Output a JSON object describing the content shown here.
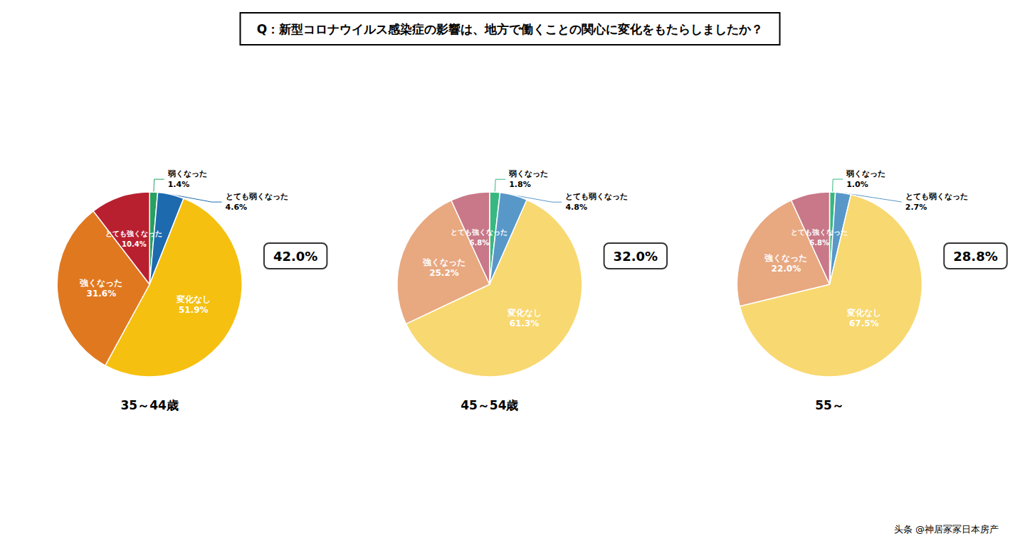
{
  "title": "Q：新型コロナウイルス感染症の影響は、地方で働くことの関心に変化をもたらしましたか？",
  "annotations": [
    "头条 @神居冢冢日本房产"
  ],
  "chart_data": [
    {
      "type": "pie",
      "title": "35～44歳",
      "categories": [
        "弱くなった",
        "とても弱くなった",
        "変化なし",
        "強くなった",
        "とても強くなった"
      ],
      "values": [
        1.4,
        4.6,
        51.9,
        31.6,
        10.4
      ],
      "value_labels": [
        "1.4%",
        "4.6%",
        "51.9%",
        "31.6%",
        "10.4%"
      ],
      "colors": [
        "#28A060",
        "#1E6AAF",
        "#F5C010",
        "#E07820",
        "#B82030"
      ],
      "data_labels": true,
      "annotations": [
        "42.0%"
      ]
    },
    {
      "type": "pie",
      "title": "45～54歳",
      "categories": [
        "弱くなった",
        "とても弱くなった",
        "変化なし",
        "強くなった",
        "とても強くなった"
      ],
      "values": [
        1.8,
        4.8,
        61.3,
        25.2,
        6.8
      ],
      "value_labels": [
        "1.8%",
        "4.8%",
        "61.3%",
        "25.2%",
        "6.8%"
      ],
      "colors": [
        "#38B880",
        "#5898C8",
        "#F8D870",
        "#E8A880",
        "#C87888"
      ],
      "data_labels": true,
      "annotations": [
        "32.0%"
      ]
    },
    {
      "type": "pie",
      "title": "55～",
      "categories": [
        "弱くなった",
        "とても弱くなった",
        "変化なし",
        "強くなった",
        "とても強くなった"
      ],
      "values": [
        1.0,
        2.7,
        67.5,
        22.0,
        6.8
      ],
      "value_labels": [
        "1.0%",
        "2.7%",
        "67.5%",
        "22.0%",
        "6.8%"
      ],
      "colors": [
        "#38B880",
        "#5898C8",
        "#F8D870",
        "#E8A880",
        "#C87888"
      ],
      "data_labels": true,
      "annotations": [
        "28.8%"
      ]
    }
  ]
}
